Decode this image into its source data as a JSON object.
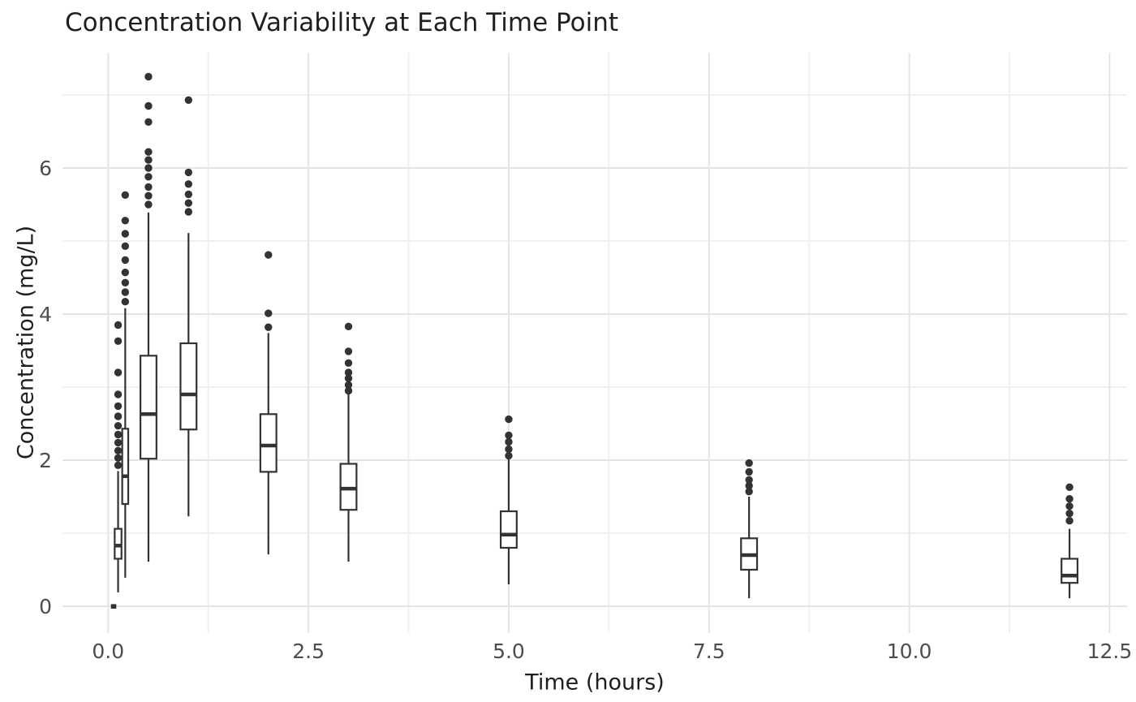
{
  "colors": {
    "background": "#ffffff",
    "box_line": "#333333",
    "outlier_fill": "#333333",
    "grid_major": "#e4e4e4",
    "grid_minor": "#f0f0f0",
    "title_text": "#1f1f1f",
    "tick_text": "#4d4d4d"
  },
  "chart_data": {
    "type": "boxplot",
    "title": "Concentration Variability at Each Time Point",
    "xlabel": "Time (hours)",
    "ylabel": "Concentration (mg/L)",
    "xlim": [
      -0.57,
      12.72
    ],
    "ylim": [
      -0.37,
      7.58
    ],
    "grid": "on",
    "legend": "none",
    "x_ticks": [
      {
        "t": 0.0,
        "label": "0.0"
      },
      {
        "t": 2.5,
        "label": "2.5"
      },
      {
        "t": 5.0,
        "label": "5.0"
      },
      {
        "t": 7.5,
        "label": "7.5"
      },
      {
        "t": 10.0,
        "label": "10.0"
      },
      {
        "t": 12.5,
        "label": "12.5"
      }
    ],
    "x_minor": [
      1.25,
      3.75,
      6.25,
      8.75,
      11.25
    ],
    "y_ticks": [
      {
        "v": 0,
        "label": "0"
      },
      {
        "v": 2,
        "label": "2"
      },
      {
        "v": 4,
        "label": "4"
      },
      {
        "v": 6,
        "label": "6"
      }
    ],
    "y_minor": [
      1,
      3,
      5,
      7
    ],
    "boxes": [
      {
        "time": 0,
        "center": 0.068,
        "width": 0.067,
        "degenerate": true,
        "whislo": 0,
        "q1": 0,
        "med": 0,
        "q3": 0,
        "whishi": 0,
        "outliers": []
      },
      {
        "time": 0.1,
        "center": 0.124,
        "width": 0.085,
        "degenerate": false,
        "whislo": 0.19,
        "q1": 0.65,
        "med": 0.83,
        "q3": 1.06,
        "whishi": 1.85,
        "outliers": [
          1.93,
          2.03,
          2.13,
          2.24,
          2.35,
          2.47,
          2.6,
          2.74,
          2.9,
          3.2,
          3.63,
          3.85
        ]
      },
      {
        "time": 0.2,
        "center": 0.213,
        "width": 0.075,
        "degenerate": false,
        "whislo": 0.39,
        "q1": 1.4,
        "med": 1.78,
        "q3": 2.43,
        "whishi": 4.08,
        "outliers": [
          4.17,
          4.3,
          4.43,
          4.57,
          4.74,
          4.93,
          5.1,
          5.28,
          5.63
        ]
      },
      {
        "time": 0.5,
        "center": 0.503,
        "width": 0.2,
        "degenerate": false,
        "whislo": 0.61,
        "q1": 2.02,
        "med": 2.63,
        "q3": 3.43,
        "whishi": 5.39,
        "outliers": [
          5.5,
          5.62,
          5.74,
          5.88,
          6.0,
          6.11,
          6.22,
          6.63,
          6.85,
          7.25
        ]
      },
      {
        "time": 1,
        "center": 1.003,
        "width": 0.2,
        "degenerate": false,
        "whislo": 1.23,
        "q1": 2.42,
        "med": 2.9,
        "q3": 3.6,
        "whishi": 5.11,
        "outliers": [
          5.4,
          5.52,
          5.64,
          5.78,
          5.94,
          6.93
        ]
      },
      {
        "time": 2,
        "center": 2.0,
        "width": 0.2,
        "degenerate": false,
        "whislo": 0.71,
        "q1": 1.84,
        "med": 2.2,
        "q3": 2.63,
        "whishi": 3.74,
        "outliers": [
          3.82,
          4.01,
          4.81
        ]
      },
      {
        "time": 3,
        "center": 3.0,
        "width": 0.2,
        "degenerate": false,
        "whislo": 0.61,
        "q1": 1.32,
        "med": 1.61,
        "q3": 1.95,
        "whishi": 2.9,
        "outliers": [
          2.95,
          3.03,
          3.12,
          3.2,
          3.33,
          3.49,
          3.83
        ]
      },
      {
        "time": 5,
        "center": 5.0,
        "width": 0.2,
        "degenerate": false,
        "whislo": 0.3,
        "q1": 0.8,
        "med": 0.98,
        "q3": 1.3,
        "whishi": 2.01,
        "outliers": [
          2.06,
          2.15,
          2.25,
          2.34,
          2.56
        ]
      },
      {
        "time": 8,
        "center": 8.0,
        "width": 0.2,
        "degenerate": false,
        "whislo": 0.11,
        "q1": 0.5,
        "med": 0.7,
        "q3": 0.93,
        "whishi": 1.5,
        "outliers": [
          1.57,
          1.65,
          1.73,
          1.84,
          1.96
        ]
      },
      {
        "time": 12,
        "center": 12.0,
        "width": 0.2,
        "degenerate": false,
        "whislo": 0.11,
        "q1": 0.32,
        "med": 0.42,
        "q3": 0.65,
        "whishi": 1.06,
        "outliers": [
          1.17,
          1.27,
          1.37,
          1.47,
          1.63
        ]
      }
    ]
  }
}
